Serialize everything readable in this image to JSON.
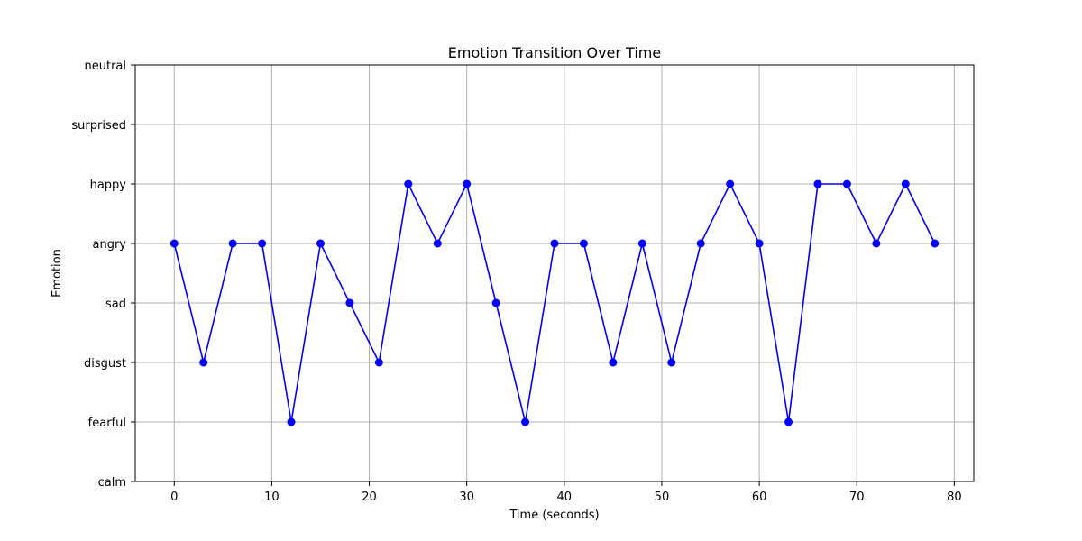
{
  "chart_data": {
    "type": "line",
    "title": "Emotion Transition Over Time",
    "xlabel": "Time (seconds)",
    "ylabel": "Emotion",
    "xlim": [
      -4,
      82
    ],
    "xticks": [
      0,
      10,
      20,
      30,
      40,
      50,
      60,
      70,
      80
    ],
    "y_categories": [
      "calm",
      "fearful",
      "disgust",
      "sad",
      "angry",
      "happy",
      "surprised",
      "neutral"
    ],
    "grid": true,
    "series": [
      {
        "color": "#0000ff",
        "marker": "circle",
        "x": [
          0,
          3,
          6,
          9,
          12,
          15,
          18,
          21,
          24,
          27,
          30,
          33,
          36,
          39,
          42,
          45,
          48,
          51,
          54,
          57,
          60,
          63,
          66,
          69,
          72,
          75,
          78
        ],
        "y": [
          "angry",
          "disgust",
          "angry",
          "angry",
          "fearful",
          "angry",
          "sad",
          "disgust",
          "happy",
          "angry",
          "happy",
          "sad",
          "fearful",
          "angry",
          "angry",
          "disgust",
          "angry",
          "disgust",
          "angry",
          "happy",
          "angry",
          "fearful",
          "happy",
          "happy",
          "angry",
          "happy",
          "angry"
        ]
      }
    ]
  }
}
